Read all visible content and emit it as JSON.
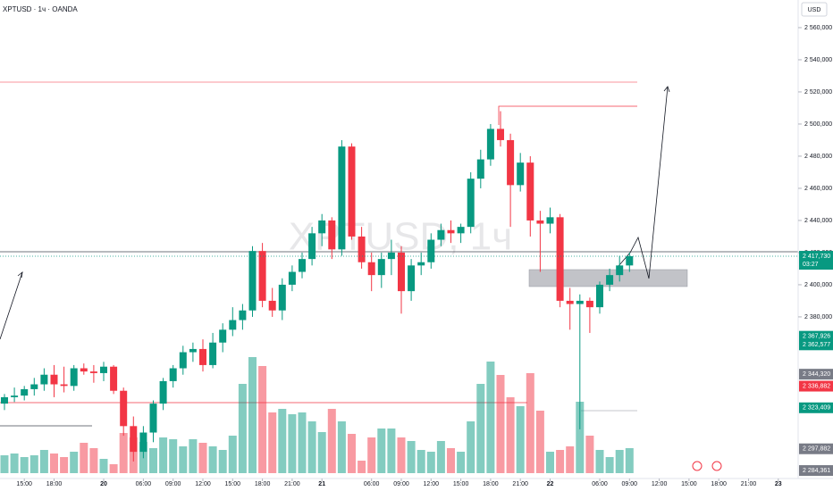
{
  "chart_data": {
    "type": "candlestick",
    "title": "XPTUSD · 1ч · OANDA",
    "watermark": "XPTUSD, 1ч",
    "currency": "USD",
    "x": [
      0,
      1,
      2,
      3,
      4,
      5,
      6,
      7,
      8,
      9,
      10,
      11,
      12,
      13,
      14,
      15,
      16,
      17,
      18,
      19,
      20,
      21,
      22,
      23,
      24,
      25,
      26,
      27,
      28,
      29,
      30,
      31,
      32,
      33,
      34,
      35,
      36,
      37,
      38,
      39,
      40,
      41,
      42,
      43,
      44,
      45,
      46,
      47,
      48,
      49,
      50,
      51,
      52,
      53,
      54,
      55,
      56,
      57,
      58,
      59,
      60,
      61,
      62,
      63
    ],
    "ohlc": [
      [
        2326000,
        2332000,
        2322000,
        2330000
      ],
      [
        2330000,
        2336000,
        2327000,
        2331000
      ],
      [
        2331000,
        2337000,
        2328000,
        2335000
      ],
      [
        2335000,
        2342000,
        2331000,
        2338000
      ],
      [
        2338000,
        2348000,
        2334000,
        2344000
      ],
      [
        2344000,
        2350000,
        2330000,
        2338000
      ],
      [
        2338000,
        2349000,
        2333000,
        2337000
      ],
      [
        2337000,
        2350000,
        2334000,
        2348000
      ],
      [
        2348000,
        2351000,
        2344000,
        2346000
      ],
      [
        2346000,
        2350000,
        2339000,
        2345000
      ],
      [
        2345000,
        2352000,
        2340000,
        2349000
      ],
      [
        2349000,
        2350000,
        2332000,
        2334000
      ],
      [
        2334000,
        2336000,
        2306000,
        2312000
      ],
      [
        2312000,
        2318000,
        2290000,
        2296000
      ],
      [
        2296000,
        2312000,
        2292000,
        2308000
      ],
      [
        2308000,
        2328000,
        2302000,
        2326000
      ],
      [
        2326000,
        2342000,
        2322000,
        2340000
      ],
      [
        2340000,
        2350000,
        2336000,
        2348000
      ],
      [
        2348000,
        2362000,
        2344000,
        2358000
      ],
      [
        2358000,
        2364000,
        2352000,
        2360000
      ],
      [
        2360000,
        2366000,
        2346000,
        2350000
      ],
      [
        2350000,
        2370000,
        2348000,
        2364000
      ],
      [
        2364000,
        2376000,
        2358000,
        2372000
      ],
      [
        2372000,
        2386000,
        2368000,
        2378000
      ],
      [
        2378000,
        2388000,
        2372000,
        2384000
      ],
      [
        2384000,
        2424000,
        2380000,
        2421000
      ],
      [
        2421000,
        2426000,
        2386000,
        2390000
      ],
      [
        2390000,
        2398000,
        2380000,
        2384000
      ],
      [
        2384000,
        2404000,
        2378000,
        2400000
      ],
      [
        2400000,
        2412000,
        2396000,
        2408000
      ],
      [
        2408000,
        2420000,
        2404000,
        2416000
      ],
      [
        2416000,
        2436000,
        2412000,
        2432000
      ],
      [
        2432000,
        2444000,
        2424000,
        2440000
      ],
      [
        2440000,
        2442000,
        2416000,
        2422000
      ],
      [
        2422000,
        2490000,
        2418000,
        2486000
      ],
      [
        2486000,
        2488000,
        2428000,
        2430000
      ],
      [
        2430000,
        2436000,
        2410000,
        2414000
      ],
      [
        2414000,
        2420000,
        2396000,
        2406000
      ],
      [
        2406000,
        2420000,
        2398000,
        2416000
      ],
      [
        2416000,
        2428000,
        2406000,
        2420000
      ],
      [
        2420000,
        2424000,
        2382000,
        2396000
      ],
      [
        2396000,
        2416000,
        2390000,
        2412000
      ],
      [
        2412000,
        2420000,
        2406000,
        2414000
      ],
      [
        2414000,
        2432000,
        2410000,
        2428000
      ],
      [
        2428000,
        2438000,
        2424000,
        2434000
      ],
      [
        2434000,
        2440000,
        2426000,
        2432000
      ],
      [
        2432000,
        2438000,
        2426000,
        2436000
      ],
      [
        2436000,
        2470000,
        2432000,
        2466000
      ],
      [
        2466000,
        2484000,
        2460000,
        2478000
      ],
      [
        2478000,
        2500000,
        2474000,
        2497000
      ],
      [
        2497000,
        2508000,
        2486000,
        2490000
      ],
      [
        2490000,
        2494000,
        2436000,
        2462000
      ],
      [
        2462000,
        2482000,
        2458000,
        2476000
      ],
      [
        2476000,
        2480000,
        2430000,
        2440000
      ],
      [
        2440000,
        2446000,
        2408000,
        2438000
      ],
      [
        2438000,
        2448000,
        2432000,
        2442000
      ],
      [
        2442000,
        2444000,
        2386000,
        2390000
      ],
      [
        2390000,
        2398000,
        2372000,
        2388000
      ],
      [
        2388000,
        2394000,
        2310000,
        2390000
      ],
      [
        2390000,
        2392000,
        2370000,
        2386000
      ],
      [
        2386000,
        2402000,
        2382000,
        2400000
      ],
      [
        2400000,
        2410000,
        2396000,
        2406000
      ],
      [
        2406000,
        2418000,
        2402000,
        2412000
      ],
      [
        2412000,
        2420000,
        2408000,
        2417730
      ]
    ],
    "volume": [
      20,
      22,
      18,
      20,
      26,
      22,
      18,
      24,
      34,
      28,
      16,
      10,
      45,
      40,
      35,
      28,
      40,
      38,
      30,
      38,
      34,
      30,
      26,
      42,
      100,
      130,
      120,
      68,
      72,
      66,
      68,
      58,
      46,
      72,
      58,
      44,
      14,
      40,
      50,
      50,
      40,
      36,
      26,
      24,
      36,
      28,
      24,
      58,
      100,
      125,
      110,
      85,
      75,
      112,
      70,
      24,
      26,
      30,
      80,
      42,
      26,
      18,
      26,
      28
    ],
    "up_color": "#089981",
    "down_color": "#f23645",
    "volume_up_color": "rgba(8,153,129,0.5)",
    "volume_down_color": "rgba(242,54,69,0.5)",
    "vlim": [
      0,
      200
    ],
    "xlim": [
      -0.45,
      80
    ],
    "xticks": [
      {
        "value": 2,
        "label": "15:00"
      },
      {
        "value": 5,
        "label": "18:00"
      },
      {
        "value": 10,
        "label": "20"
      },
      {
        "value": 14,
        "label": "06:00"
      },
      {
        "value": 17,
        "label": "09:00"
      },
      {
        "value": 20,
        "label": "12:00"
      },
      {
        "value": 23,
        "label": "15:00"
      },
      {
        "value": 26,
        "label": "18:00"
      },
      {
        "value": 29,
        "label": "21:00"
      },
      {
        "value": 32,
        "label": "21"
      },
      {
        "value": 37,
        "label": "06:00"
      },
      {
        "value": 40,
        "label": "09:00"
      },
      {
        "value": 43,
        "label": "12:00"
      },
      {
        "value": 46,
        "label": "15:00"
      },
      {
        "value": 49,
        "label": "18:00"
      },
      {
        "value": 52,
        "label": "21:00"
      },
      {
        "value": 55,
        "label": "22"
      },
      {
        "value": 60,
        "label": "06:00"
      },
      {
        "value": 63,
        "label": "09:00"
      },
      {
        "value": 66,
        "label": "12:00"
      },
      {
        "value": 69,
        "label": "15:00"
      },
      {
        "value": 72,
        "label": "18:00"
      },
      {
        "value": 75,
        "label": "21:00"
      },
      {
        "value": 78,
        "label": "23"
      }
    ],
    "ylim": [
      2279400,
      2577200
    ],
    "yticks": [
      {
        "value": 2560000,
        "label": "2 560,000"
      },
      {
        "value": 2540000,
        "label": "2 540,000"
      },
      {
        "value": 2520000,
        "label": "2 520,000"
      },
      {
        "value": 2500000,
        "label": "2 500,000"
      },
      {
        "value": 2480000,
        "label": "2 480,000"
      },
      {
        "value": 2460000,
        "label": "2 460,000"
      },
      {
        "value": 2440000,
        "label": "2 440,000"
      },
      {
        "value": 2420000,
        "label": "2 420,000"
      },
      {
        "value": 2400000,
        "label": "2 400,000"
      },
      {
        "value": 2380000,
        "label": "2 380,000"
      }
    ],
    "price_labels": [
      {
        "value": 2417730,
        "label": "2 417,730",
        "time": "03:27",
        "color": "#089981"
      },
      {
        "value": 2367926,
        "label": "2 367,926",
        "color": "#089981"
      },
      {
        "value": 2362577,
        "label": "2 362,577",
        "color": "#089981"
      },
      {
        "value": 2344320,
        "label": "2 344,320",
        "color": "#787b86"
      },
      {
        "value": 2336882,
        "label": "2 336,882",
        "color": "#f23645"
      },
      {
        "value": 2323409,
        "label": "2 323,409",
        "color": "#089981"
      },
      {
        "value": 2297882,
        "label": "2 297,882",
        "color": "#787b86"
      },
      {
        "value": 2284361,
        "label": "2 284,361",
        "color": "#787b86"
      }
    ]
  }
}
